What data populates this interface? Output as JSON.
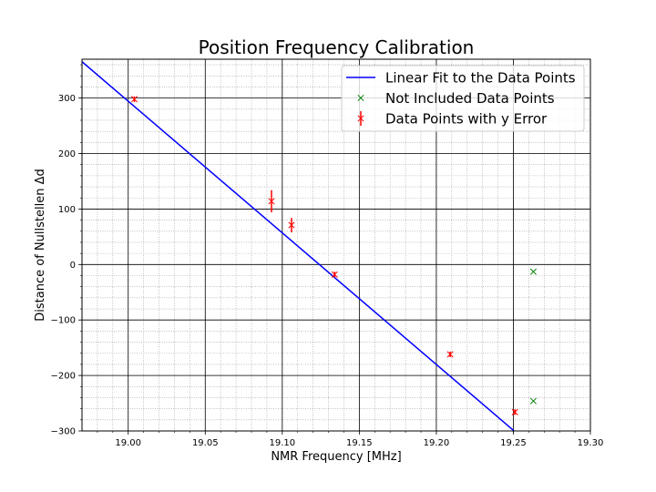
{
  "chart_data": {
    "type": "scatter",
    "title": "Position Frequency Calibration",
    "xlabel": "NMR Frequency [MHz]",
    "ylabel": "Distance of Nullstellen Δd",
    "xlim": [
      18.97,
      19.3
    ],
    "ylim": [
      -300,
      370
    ],
    "x_ticks": [
      19.0,
      19.05,
      19.1,
      19.15,
      19.2,
      19.25,
      19.3
    ],
    "x_tick_labels": [
      "19.00",
      "19.05",
      "19.10",
      "19.15",
      "19.20",
      "19.25",
      "19.30"
    ],
    "y_ticks": [
      -300,
      -200,
      -100,
      0,
      100,
      200,
      300
    ],
    "y_tick_labels": [
      "−300",
      "−200",
      "−100",
      "0",
      "100",
      "200",
      "300"
    ],
    "x_minor_step": 0.01,
    "y_minor_step": 20,
    "grid": true,
    "legend_position": "top-right",
    "series": [
      {
        "name": "Linear Fit to the Data Points",
        "kind": "line",
        "color": "#0000ff",
        "x": [
          18.97,
          19.3
        ],
        "y": [
          365.5,
          -417.5
        ]
      },
      {
        "name": "Not Included Data Points",
        "kind": "scatter",
        "marker": "x",
        "color": "#008000",
        "x": [
          19.263,
          19.263
        ],
        "y": [
          -13,
          -246
        ]
      },
      {
        "name": "Data Points with y Error",
        "kind": "errorbar",
        "marker": "x",
        "color": "#ff0000",
        "x": [
          19.004,
          19.093,
          19.106,
          19.134,
          19.209,
          19.251
        ],
        "y": [
          298,
          114,
          71,
          -18,
          -162,
          -266
        ],
        "yerr": [
          5,
          20,
          13,
          5,
          5,
          5
        ]
      }
    ]
  }
}
